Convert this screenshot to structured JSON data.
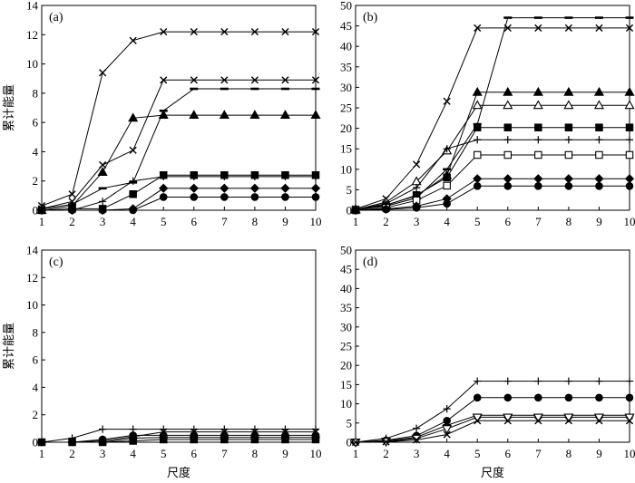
{
  "chart_data": [
    {
      "type": "line",
      "panel_label": "(a)",
      "ylabel": "累计能量",
      "xlabel": "",
      "xlim": [
        1,
        10
      ],
      "ylim": [
        0,
        14
      ],
      "yticks": [
        0,
        2,
        4,
        6,
        8,
        10,
        12,
        14
      ],
      "x": [
        1,
        2,
        3,
        4,
        5,
        6,
        7,
        8,
        9,
        10
      ],
      "series": [
        {
          "marker": "x",
          "values": [
            0.3,
            1.1,
            9.4,
            11.6,
            12.2,
            12.2,
            12.2,
            12.2,
            12.2,
            12.2
          ]
        },
        {
          "marker": "x",
          "values": [
            0.1,
            0.6,
            3.1,
            4.1,
            8.9,
            8.9,
            8.9,
            8.9,
            8.9,
            8.9
          ]
        },
        {
          "marker": "dash",
          "values": [
            0.1,
            0.4,
            1.5,
            1.9,
            6.8,
            8.3,
            8.3,
            8.3,
            8.3,
            8.3
          ]
        },
        {
          "marker": "triangle",
          "values": [
            0.0,
            0.3,
            2.6,
            6.3,
            6.5,
            6.5,
            6.5,
            6.5,
            6.5,
            6.5
          ]
        },
        {
          "marker": "square",
          "values": [
            0.0,
            0.1,
            0.1,
            1.1,
            2.4,
            2.4,
            2.4,
            2.4,
            2.4,
            2.4
          ]
        },
        {
          "marker": "plus",
          "values": [
            0.0,
            0.0,
            0.6,
            2.0,
            2.3,
            2.3,
            2.3,
            2.3,
            2.3,
            2.3
          ]
        },
        {
          "marker": "diamond",
          "values": [
            0.0,
            0.0,
            0.0,
            0.1,
            1.5,
            1.5,
            1.5,
            1.5,
            1.5,
            1.5
          ]
        },
        {
          "marker": "circle",
          "values": [
            0.0,
            0.0,
            0.0,
            0.0,
            0.9,
            0.9,
            0.9,
            0.9,
            0.9,
            0.9
          ]
        }
      ]
    },
    {
      "type": "line",
      "panel_label": "(b)",
      "ylabel": "",
      "xlabel": "",
      "xlim": [
        1,
        10
      ],
      "ylim": [
        0,
        50
      ],
      "yticks": [
        0,
        5,
        10,
        15,
        20,
        25,
        30,
        35,
        40,
        45,
        50
      ],
      "x": [
        1,
        2,
        3,
        4,
        5,
        6,
        7,
        8,
        9,
        10
      ],
      "series": [
        {
          "marker": "dash",
          "values": [
            0.2,
            1.0,
            3.0,
            10.0,
            21.0,
            47.0,
            47.0,
            47.0,
            47.0,
            47.0
          ]
        },
        {
          "marker": "x",
          "values": [
            0.3,
            2.8,
            11.2,
            26.6,
            44.5,
            44.5,
            44.5,
            44.5,
            44.5,
            44.5
          ]
        },
        {
          "marker": "triangle",
          "values": [
            0.2,
            1.3,
            3.5,
            8.5,
            28.8,
            28.8,
            28.8,
            28.8,
            28.8,
            28.8
          ]
        },
        {
          "marker": "triangle-open",
          "values": [
            0.1,
            2.0,
            7.0,
            14.5,
            25.6,
            25.6,
            25.6,
            25.6,
            25.6,
            25.6
          ]
        },
        {
          "marker": "square",
          "values": [
            0.1,
            1.2,
            3.7,
            8.0,
            20.2,
            20.2,
            20.2,
            20.2,
            20.2,
            20.2
          ]
        },
        {
          "marker": "plus",
          "values": [
            0.1,
            1.6,
            5.5,
            15.0,
            17.2,
            17.2,
            17.2,
            17.2,
            17.2,
            17.2
          ]
        },
        {
          "marker": "square-open",
          "values": [
            0.0,
            0.6,
            2.4,
            6.0,
            13.5,
            13.5,
            13.5,
            13.5,
            13.5,
            13.5
          ]
        },
        {
          "marker": "diamond",
          "values": [
            0.0,
            0.3,
            1.0,
            2.8,
            7.7,
            7.7,
            7.7,
            7.7,
            7.7,
            7.7
          ]
        },
        {
          "marker": "circle",
          "values": [
            0.0,
            0.2,
            0.6,
            1.6,
            5.9,
            5.9,
            5.9,
            5.9,
            5.9,
            5.9
          ]
        }
      ]
    },
    {
      "type": "line",
      "panel_label": "(c)",
      "ylabel": "累计能量",
      "xlabel": "尺度",
      "xlim": [
        1,
        10
      ],
      "ylim": [
        0,
        14
      ],
      "yticks": [
        0,
        2,
        4,
        6,
        8,
        10,
        12,
        14
      ],
      "x": [
        1,
        2,
        3,
        4,
        5,
        6,
        7,
        8,
        9,
        10
      ],
      "series": [
        {
          "marker": "plus",
          "values": [
            0.0,
            0.3,
            0.95,
            0.95,
            0.95,
            0.95,
            0.95,
            0.95,
            0.95,
            0.95
          ]
        },
        {
          "marker": "x",
          "values": [
            0.0,
            0.0,
            0.1,
            0.4,
            0.75,
            0.75,
            0.75,
            0.75,
            0.75,
            0.75
          ]
        },
        {
          "marker": "circle",
          "values": [
            0.0,
            0.0,
            0.2,
            0.5,
            0.5,
            0.5,
            0.5,
            0.5,
            0.5,
            0.5
          ]
        },
        {
          "marker": "dash",
          "values": [
            0.0,
            0.0,
            0.0,
            0.3,
            0.35,
            0.35,
            0.35,
            0.35,
            0.35,
            0.35
          ]
        },
        {
          "marker": "square",
          "values": [
            0.0,
            0.0,
            0.0,
            0.1,
            0.2,
            0.2,
            0.2,
            0.2,
            0.2,
            0.2
          ]
        }
      ]
    },
    {
      "type": "line",
      "panel_label": "(d)",
      "ylabel": "",
      "xlabel": "尺度",
      "xlim": [
        1,
        10
      ],
      "ylim": [
        0,
        50
      ],
      "yticks": [
        0,
        5,
        10,
        15,
        20,
        25,
        30,
        35,
        40,
        45,
        50
      ],
      "x": [
        1,
        2,
        3,
        4,
        5,
        6,
        7,
        8,
        9,
        10
      ],
      "series": [
        {
          "marker": "plus",
          "values": [
            0.0,
            1.0,
            3.6,
            8.7,
            15.9,
            15.9,
            15.9,
            15.9,
            15.9,
            15.9
          ]
        },
        {
          "marker": "circle",
          "values": [
            0.0,
            0.5,
            1.7,
            5.6,
            11.6,
            11.6,
            11.6,
            11.6,
            11.6,
            11.6
          ]
        },
        {
          "marker": "dash",
          "values": [
            0.0,
            0.3,
            1.3,
            4.4,
            7.0,
            7.0,
            7.0,
            7.0,
            7.0,
            7.0
          ]
        },
        {
          "marker": "triangle-down",
          "values": [
            0.0,
            0.2,
            1.0,
            3.5,
            6.5,
            6.5,
            6.5,
            6.5,
            6.5,
            6.5
          ]
        },
        {
          "marker": "x",
          "values": [
            0.0,
            0.1,
            0.6,
            2.0,
            5.6,
            5.6,
            5.6,
            5.6,
            5.6,
            5.6
          ]
        }
      ]
    }
  ]
}
